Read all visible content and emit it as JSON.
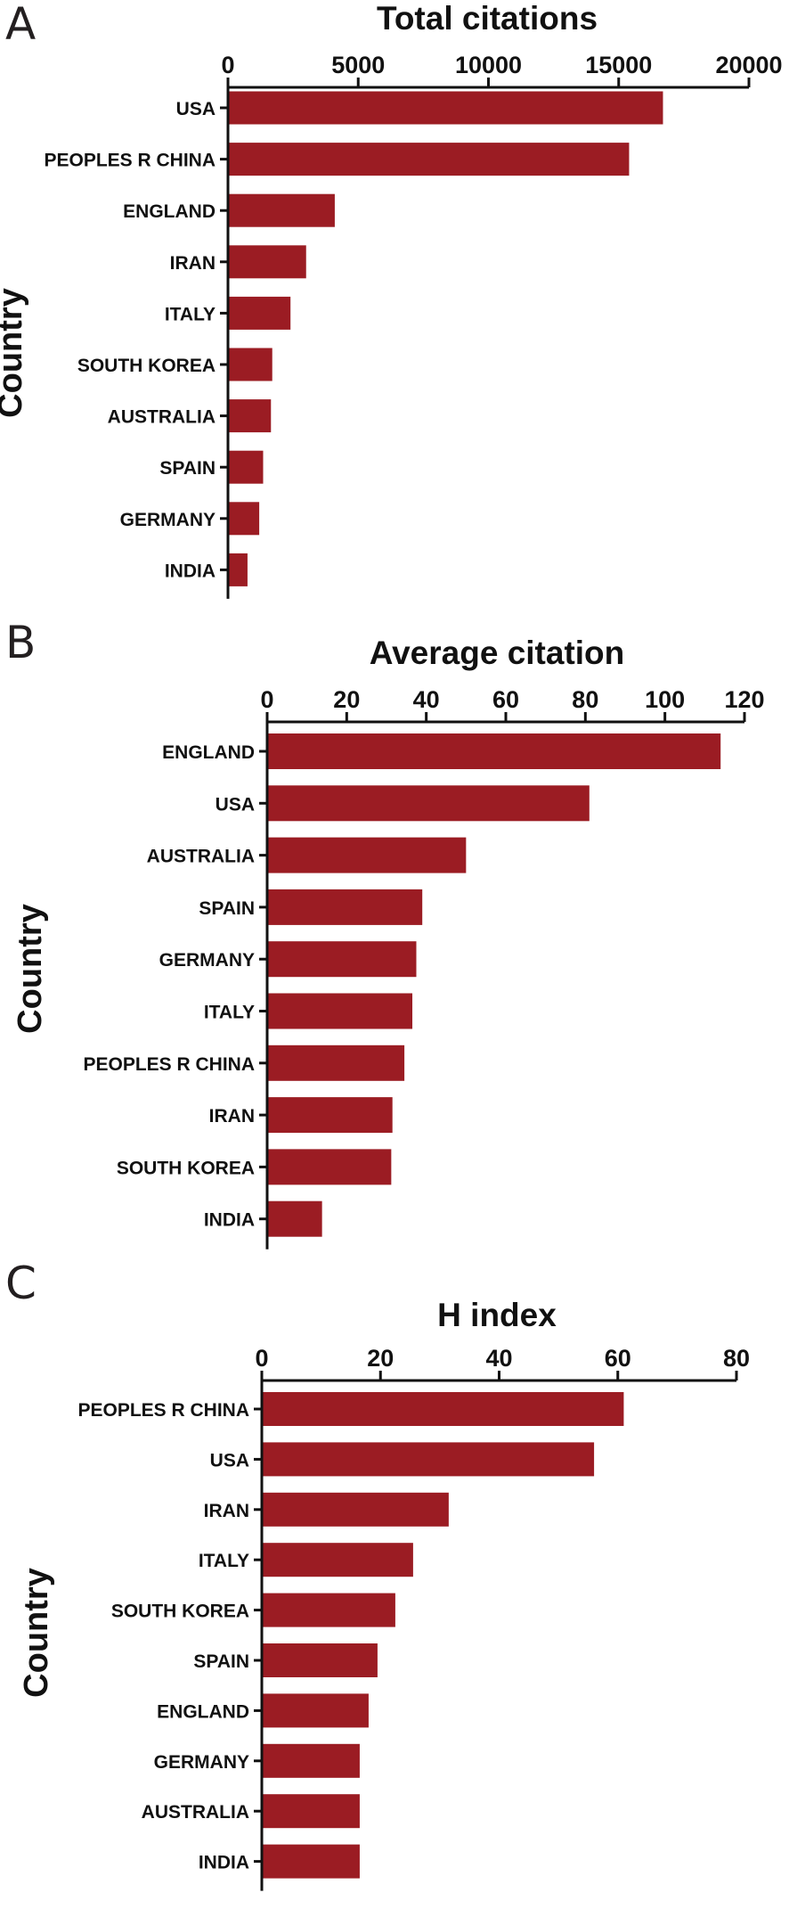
{
  "colors": {
    "bar": "#9b1c23",
    "axis": "#111111"
  },
  "chart_data": [
    {
      "type": "bar",
      "orientation": "horizontal",
      "panel": "A",
      "title": "Total citations",
      "ylabel": "Country",
      "xlabel": "",
      "xlim": [
        0,
        20000
      ],
      "xticks": [
        0,
        5000,
        10000,
        15000,
        20000
      ],
      "xtick_labels": [
        "0",
        "5000",
        "10000",
        "15000",
        "20000"
      ],
      "categories": [
        "USA",
        "PEOPLES R CHINA",
        "ENGLAND",
        "IRAN",
        "ITALY",
        "SOUTH KOREA",
        "AUSTRALIA",
        "SPAIN",
        "GERMANY",
        "INDIA"
      ],
      "values": [
        16700,
        15400,
        4100,
        3000,
        2400,
        1700,
        1650,
        1350,
        1200,
        750
      ],
      "axis_position": "top",
      "grid": false,
      "legend": "none"
    },
    {
      "type": "bar",
      "orientation": "horizontal",
      "panel": "B",
      "title": "Average citation",
      "ylabel": "Country",
      "xlabel": "",
      "xlim": [
        0,
        120
      ],
      "xticks": [
        0,
        20,
        40,
        60,
        80,
        100,
        120
      ],
      "xtick_labels": [
        "0",
        "20",
        "40",
        "60",
        "80",
        "100",
        "120"
      ],
      "categories": [
        "ENGLAND",
        "USA",
        "AUSTRALIA",
        "SPAIN",
        "GERMANY",
        "ITALY",
        "PEOPLES R CHINA",
        "IRAN",
        "SOUTH KOREA",
        "INDIA"
      ],
      "values": [
        114,
        81,
        50,
        39,
        37.5,
        36.5,
        34.5,
        31.5,
        31.2,
        13.8
      ],
      "axis_position": "top",
      "grid": false,
      "legend": "none"
    },
    {
      "type": "bar",
      "orientation": "horizontal",
      "panel": "C",
      "title": "H index",
      "ylabel": "Country",
      "xlabel": "",
      "xlim": [
        0,
        80
      ],
      "xticks": [
        0,
        20,
        40,
        60,
        80
      ],
      "xtick_labels": [
        "0",
        "20",
        "40",
        "60",
        "80"
      ],
      "categories": [
        "PEOPLES R CHINA",
        "USA",
        "IRAN",
        "ITALY",
        "SOUTH KOREA",
        "SPAIN",
        "ENGLAND",
        "GERMANY",
        "AUSTRALIA",
        "INDIA"
      ],
      "values": [
        61,
        56,
        31.5,
        25.5,
        22.5,
        19.5,
        18,
        16.5,
        16.5,
        16.5
      ],
      "axis_position": "top",
      "grid": false,
      "legend": "none"
    }
  ]
}
